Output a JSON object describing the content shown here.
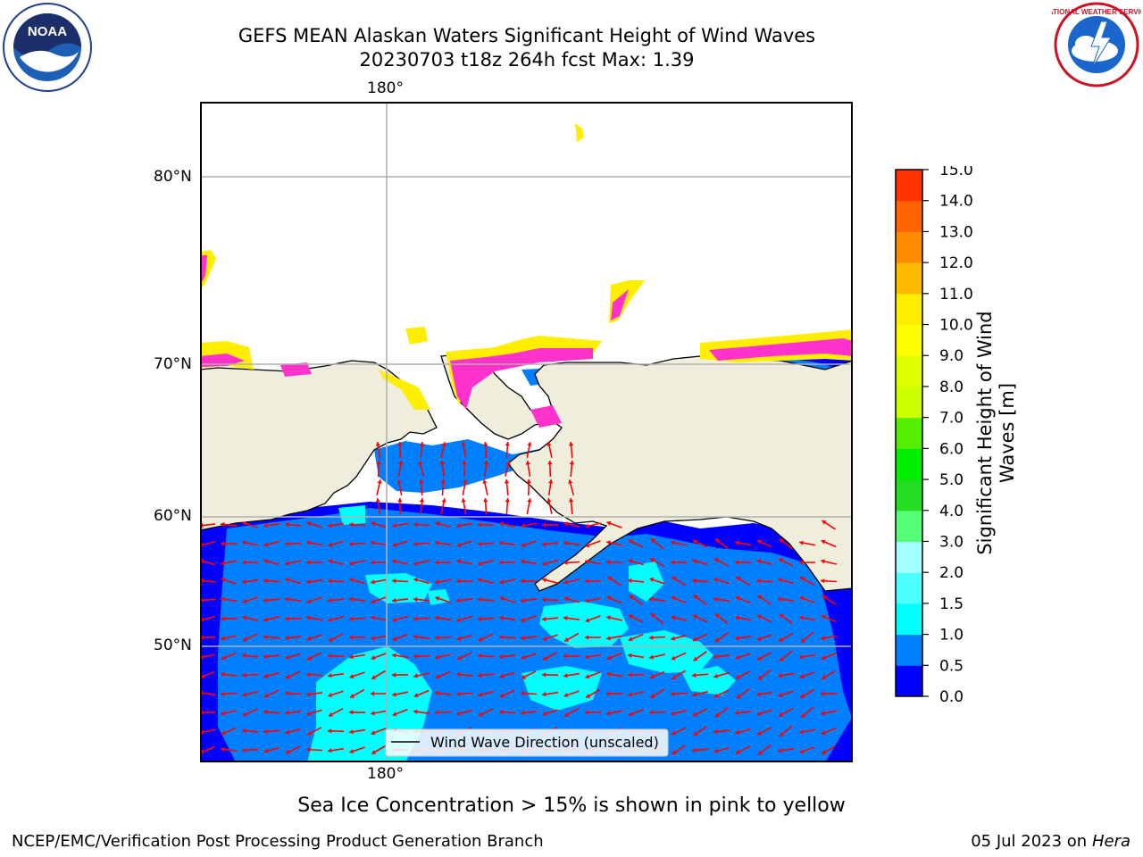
{
  "title": {
    "line1": "GEFS MEAN Alaskan Waters Significant Height of Wind Waves",
    "line2": "20230703 t18z 264h fcst   Max: 1.39"
  },
  "map": {
    "lon_labels": {
      "top": "180°",
      "bottom": "180°"
    },
    "lat_labels": [
      "80°N",
      "70°N",
      "60°N",
      "50°N"
    ],
    "legend_label": "Wind Wave Direction (unscaled)",
    "colors": {
      "land": "#efeedc",
      "coast": "#000000",
      "grid": "#b0b0b0",
      "arrow": "#ff0000",
      "wave_0_0_5": "#0000ff",
      "wave_0_5_1_0": "#0080ff",
      "wave_1_0_1_5": "#00ffff",
      "ice_pink": "#ff33cc",
      "ice_yellow": "#ffee00"
    }
  },
  "colorbar": {
    "label": "Significant Height of Wind Waves [m]",
    "ticks": [
      "0.0",
      "0.5",
      "1.0",
      "1.5",
      "2.0",
      "3.0",
      "4.0",
      "5.0",
      "6.0",
      "7.0",
      "8.0",
      "9.0",
      "10.0",
      "11.0",
      "12.0",
      "13.0",
      "14.0",
      "15.0"
    ],
    "colors": [
      "#0000ff",
      "#0080ff",
      "#00ffff",
      "#4dffff",
      "#a6ffff",
      "#55ff77",
      "#22dd22",
      "#00ee00",
      "#55ee00",
      "#ccff00",
      "#ddff00",
      "#ffff00",
      "#ffee00",
      "#ffbb00",
      "#ff8c00",
      "#ff6400",
      "#ff3200",
      "#ff0000"
    ]
  },
  "logos": {
    "noaa_text": "NOAA",
    "nws_text": "NATIONAL WEATHER SERVICE"
  },
  "note": "Sea Ice Concentration > 15% is shown in pink to yellow",
  "footer": {
    "left": "NCEP/EMC/Verification Post Processing Product Generation Branch",
    "date": "05 Jul 2023 on ",
    "machine": "Hera"
  }
}
